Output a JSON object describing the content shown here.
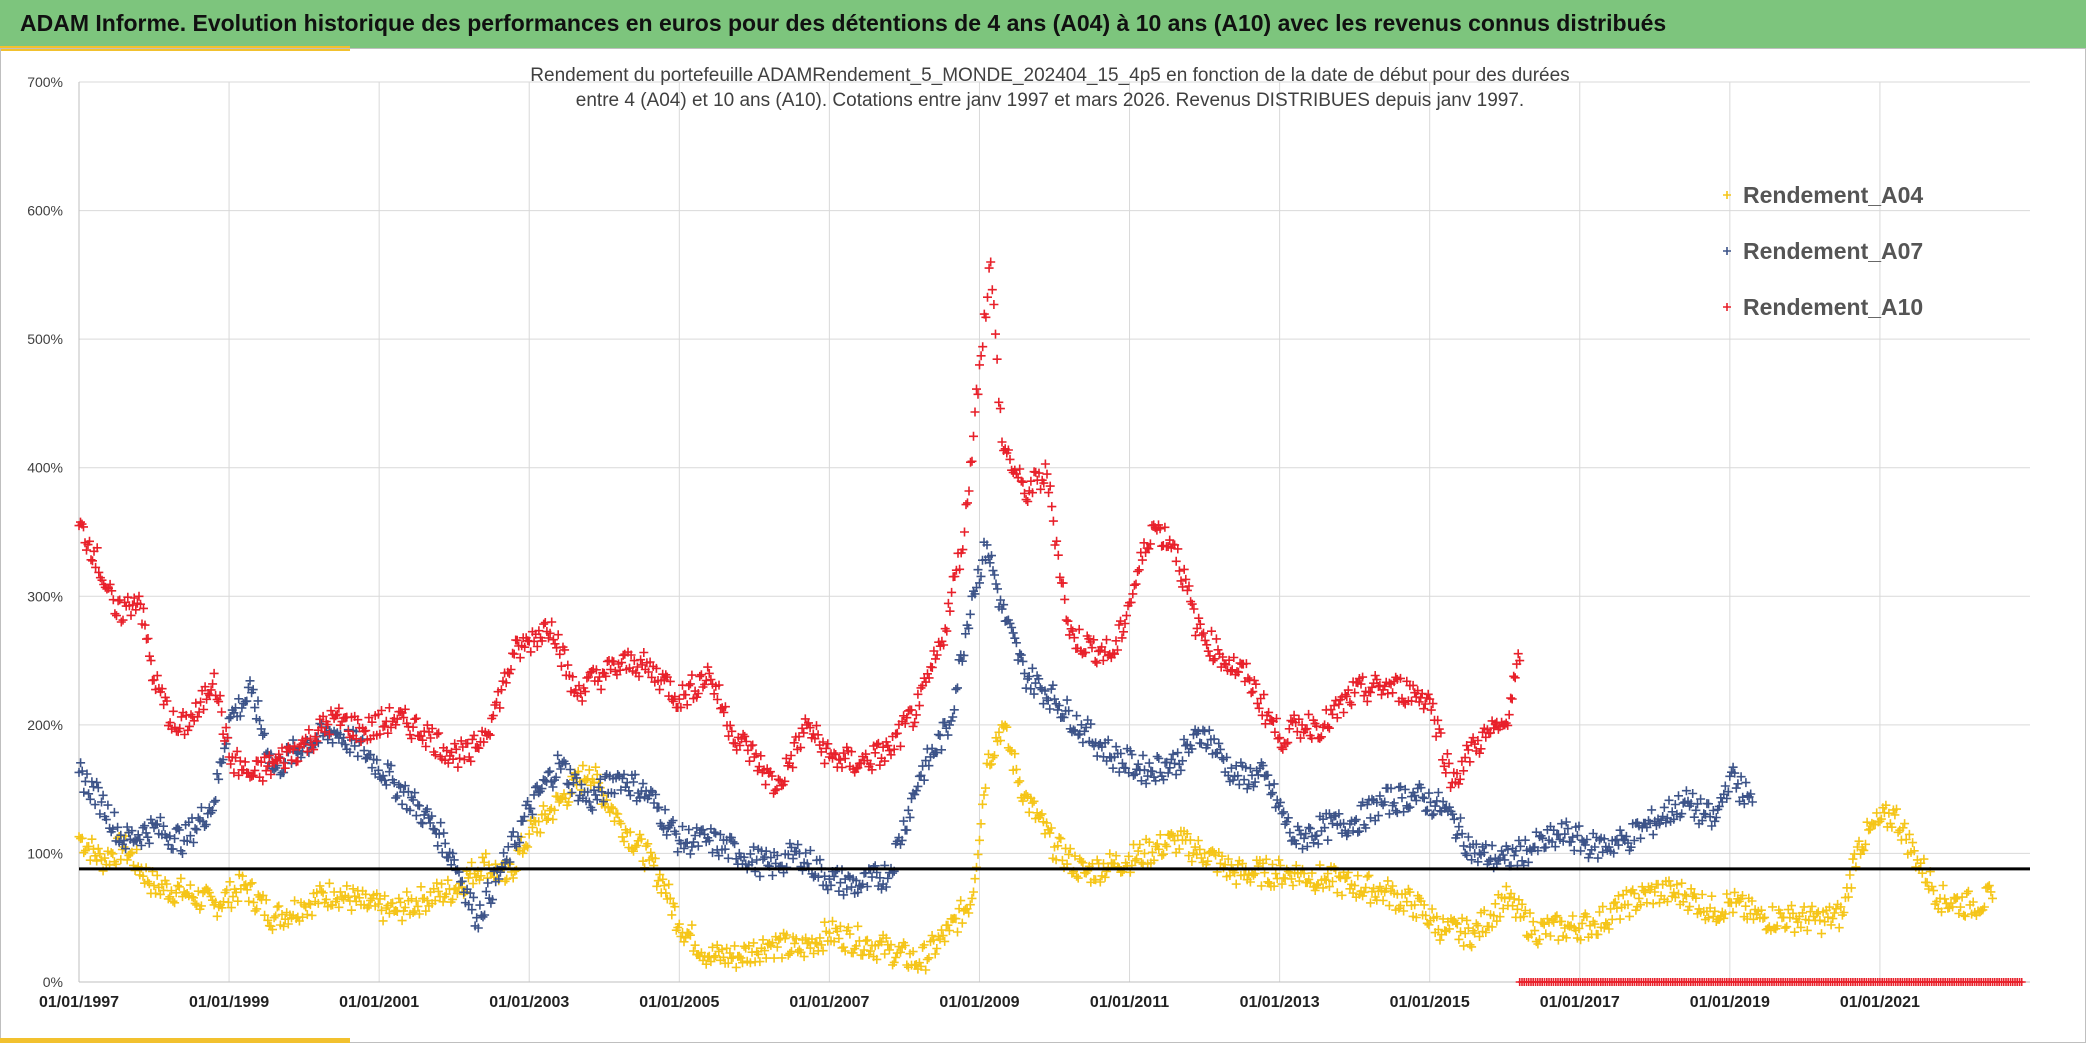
{
  "header": {
    "title": "ADAM Informe. Evolution historique des performances en euros pour des détentions de 4 ans (A04) à 10 ans (A10) avec les revenus connus distribués"
  },
  "colors": {
    "header_bg": "#7dc57d",
    "accent": "#f2c12e",
    "A04": "#f5c518",
    "A07": "#3c5388",
    "A10": "#e8202a",
    "reference_line": "#000000",
    "grid": "#d9d9d9"
  },
  "chart_data": {
    "type": "scatter",
    "title_lines": [
      "Rendement du portefeuille ADAMRendement_5_MONDE_202404_15_4p5  en fonction de la date de début pour des durées",
      "entre 4 (A04) et 10 ans (A10). Cotations entre janv 1997 et mars 2026. Revenus DISTRIBUES depuis janv 1997."
    ],
    "x_axis": {
      "type": "date",
      "range": [
        1997.0,
        2023.0
      ],
      "tick_years": [
        1997,
        1999,
        2001,
        2003,
        2005,
        2007,
        2009,
        2011,
        2013,
        2015,
        2017,
        2019,
        2021
      ],
      "tick_labels": [
        "01/01/1997",
        "01/01/1999",
        "01/01/2001",
        "01/01/2003",
        "01/01/2005",
        "01/01/2007",
        "01/01/2009",
        "01/01/2011",
        "01/01/2013",
        "01/01/2015",
        "01/01/2017",
        "01/01/2019",
        "01/01/2021"
      ]
    },
    "y_axis": {
      "range": [
        0,
        700
      ],
      "ticks": [
        0,
        100,
        200,
        300,
        400,
        500,
        600,
        700
      ],
      "tick_labels": [
        "0%",
        "100%",
        "200%",
        "300%",
        "400%",
        "500%",
        "600%",
        "700%"
      ],
      "grid": true
    },
    "reference_line": {
      "y": 88
    },
    "legend": {
      "position": "top-right"
    },
    "series": [
      {
        "name": "Rendement_A04",
        "color": "#f5c518",
        "x": [
          1997.0,
          1997.3,
          1997.6,
          1998.0,
          1998.4,
          1998.8,
          1999.2,
          1999.6,
          2000.0,
          2000.4,
          2000.8,
          2001.2,
          2001.6,
          2002.0,
          2002.4,
          2002.7,
          2003.0,
          2003.4,
          2003.8,
          2004.2,
          2004.6,
          2004.8,
          2005.0,
          2005.4,
          2005.8,
          2006.2,
          2006.6,
          2007.0,
          2007.4,
          2007.8,
          2008.2,
          2008.6,
          2008.9,
          2009.1,
          2009.3,
          2009.6,
          2010.0,
          2010.4,
          2010.8,
          2011.2,
          2011.6,
          2012.0,
          2012.4,
          2012.8,
          2013.2,
          2013.6,
          2014.0,
          2014.4,
          2014.8,
          2015.2,
          2015.6,
          2016.0,
          2016.4,
          2016.8,
          2017.2,
          2017.6,
          2018.0,
          2018.4,
          2018.8,
          2019.0,
          2019.4,
          2019.8,
          2020.2,
          2020.5,
          2020.7,
          2021.0,
          2021.2,
          2021.5,
          2021.8,
          2022.2,
          2022.5
        ],
        "values": [
          113,
          95,
          105,
          75,
          70,
          60,
          75,
          50,
          60,
          70,
          60,
          55,
          65,
          72,
          93,
          80,
          115,
          140,
          165,
          125,
          95,
          75,
          45,
          20,
          20,
          30,
          25,
          38,
          32,
          25,
          15,
          40,
          65,
          170,
          200,
          145,
          105,
          85,
          92,
          100,
          110,
          100,
          85,
          85,
          85,
          80,
          75,
          70,
          60,
          40,
          38,
          65,
          40,
          42,
          45,
          60,
          70,
          68,
          55,
          62,
          50,
          50,
          48,
          52,
          105,
          125,
          130,
          95,
          65,
          60,
          65
        ]
      },
      {
        "name": "Rendement_A07",
        "color": "#3c5388",
        "x": [
          1997.0,
          1997.3,
          1997.6,
          1998.0,
          1998.4,
          1998.8,
          1999.0,
          1999.3,
          1999.6,
          2000.0,
          2000.4,
          2000.8,
          2001.2,
          2001.6,
          2001.8,
          2002.0,
          2002.3,
          2002.7,
          2003.0,
          2003.4,
          2003.8,
          2004.2,
          2004.6,
          2005.0,
          2005.4,
          2005.8,
          2006.2,
          2006.6,
          2007.0,
          2007.4,
          2007.8,
          2008.2,
          2008.6,
          2008.9,
          2009.1,
          2009.3,
          2009.6,
          2010.0,
          2010.4,
          2010.8,
          2011.2,
          2011.6,
          2012.0,
          2012.4,
          2012.8,
          2013.2,
          2013.6,
          2014.0,
          2014.4,
          2014.8,
          2015.2,
          2015.6,
          2016.0,
          2016.4,
          2016.8,
          2017.2,
          2017.6,
          2018.0,
          2018.4,
          2018.8,
          2019.0,
          2019.3
        ],
        "values": [
          163,
          140,
          110,
          120,
          110,
          140,
          205,
          225,
          165,
          185,
          195,
          180,
          155,
          130,
          115,
          95,
          50,
          95,
          135,
          170,
          140,
          160,
          145,
          110,
          110,
          100,
          90,
          100,
          80,
          75,
          85,
          160,
          200,
          300,
          340,
          290,
          240,
          220,
          195,
          175,
          165,
          170,
          195,
          160,
          160,
          110,
          120,
          125,
          140,
          145,
          135,
          100,
          95,
          105,
          115,
          105,
          110,
          125,
          140,
          125,
          160,
          140
        ]
      },
      {
        "name": "Rendement_A10",
        "color": "#e8202a",
        "x": [
          1997.0,
          1997.2,
          1997.5,
          1997.8,
          1998.0,
          1998.3,
          1998.6,
          1998.8,
          1999.0,
          1999.3,
          1999.6,
          2000.0,
          2000.4,
          2000.8,
          2001.2,
          2001.6,
          2001.9,
          2002.2,
          2002.5,
          2002.8,
          2003.0,
          2003.3,
          2003.6,
          2004.0,
          2004.4,
          2004.8,
          2005.0,
          2005.4,
          2005.7,
          2006.0,
          2006.3,
          2006.7,
          2007.0,
          2007.4,
          2007.8,
          2008.2,
          2008.5,
          2008.8,
          2009.0,
          2009.15,
          2009.3,
          2009.6,
          2009.9,
          2010.2,
          2010.5,
          2010.8,
          2011.0,
          2011.3,
          2011.6,
          2011.9,
          2012.2,
          2012.6,
          2013.0,
          2013.3,
          2013.6,
          2014.0,
          2014.4,
          2014.8,
          2015.0,
          2015.3,
          2015.6,
          2016.0,
          2016.2
        ],
        "values": [
          355,
          335,
          285,
          300,
          235,
          195,
          210,
          240,
          175,
          160,
          170,
          185,
          205,
          195,
          205,
          195,
          180,
          175,
          205,
          255,
          265,
          280,
          225,
          240,
          250,
          235,
          220,
          240,
          195,
          175,
          150,
          200,
          175,
          170,
          180,
          215,
          265,
          350,
          480,
          560,
          420,
          380,
          395,
          270,
          260,
          255,
          295,
          355,
          340,
          275,
          255,
          235,
          190,
          200,
          200,
          225,
          230,
          225,
          220,
          155,
          185,
          200,
          250
        ]
      }
    ],
    "baseline_marks": {
      "x_range": [
        2016.2,
        2022.9
      ],
      "value": 0,
      "series": "Rendement_A10"
    }
  }
}
